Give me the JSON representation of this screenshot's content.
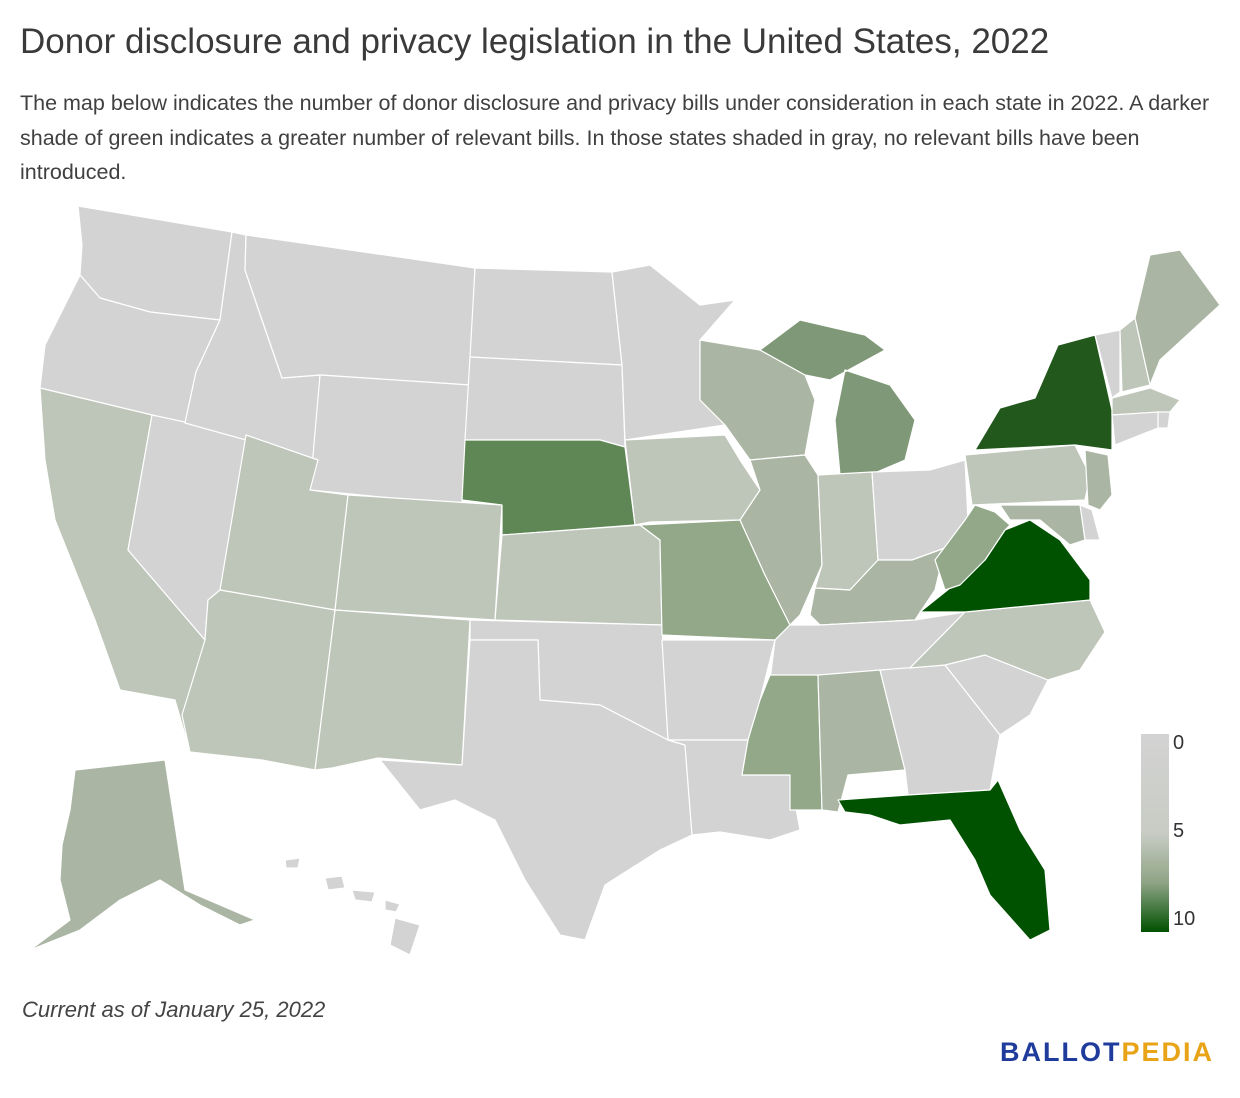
{
  "title": "Donor disclosure and privacy legislation in the United States, 2022",
  "subtitle": "The map below indicates the number of donor disclosure and privacy bills under consideration in each state in 2022. A darker shade of green indicates a greater number of relevant bills. In those states shaded in gray, no relevant bills have been introduced.",
  "footnote": "Current as of January 25, 2022",
  "logo": {
    "part1": "BALLOT",
    "part2": "PEDIA"
  },
  "legend": {
    "labels": [
      "0",
      "5",
      "10"
    ],
    "colors": [
      "#d3d3d3",
      "#c8ccc4",
      "#8fa486",
      "#005100"
    ]
  },
  "colors": {
    "none": "#d3d3d3",
    "low": "#bec5b9",
    "low2": "#aab6a3",
    "mid": "#92a889",
    "mid2": "#7f9877",
    "high": "#5f8655",
    "very_high": "#23581c",
    "max": "#005100"
  },
  "states": [
    {
      "name": "WA",
      "level": "none"
    },
    {
      "name": "OR",
      "level": "none"
    },
    {
      "name": "CA",
      "level": "low"
    },
    {
      "name": "NV",
      "level": "none"
    },
    {
      "name": "ID",
      "level": "none"
    },
    {
      "name": "MT",
      "level": "none"
    },
    {
      "name": "WY",
      "level": "none"
    },
    {
      "name": "UT",
      "level": "low"
    },
    {
      "name": "AZ",
      "level": "low"
    },
    {
      "name": "CO",
      "level": "low"
    },
    {
      "name": "NM",
      "level": "low"
    },
    {
      "name": "ND",
      "level": "none"
    },
    {
      "name": "SD",
      "level": "none"
    },
    {
      "name": "NE",
      "level": "high"
    },
    {
      "name": "KS",
      "level": "low"
    },
    {
      "name": "OK",
      "level": "none"
    },
    {
      "name": "TX",
      "level": "none"
    },
    {
      "name": "MN",
      "level": "none"
    },
    {
      "name": "IA",
      "level": "low"
    },
    {
      "name": "MO",
      "level": "mid"
    },
    {
      "name": "AR",
      "level": "none"
    },
    {
      "name": "LA",
      "level": "none"
    },
    {
      "name": "WI",
      "level": "low2"
    },
    {
      "name": "IL",
      "level": "low2"
    },
    {
      "name": "MI",
      "level": "mid2"
    },
    {
      "name": "IN",
      "level": "low"
    },
    {
      "name": "OH",
      "level": "none"
    },
    {
      "name": "KY",
      "level": "low2"
    },
    {
      "name": "TN",
      "level": "none"
    },
    {
      "name": "MS",
      "level": "mid"
    },
    {
      "name": "AL",
      "level": "low2"
    },
    {
      "name": "GA",
      "level": "none"
    },
    {
      "name": "FL",
      "level": "max"
    },
    {
      "name": "SC",
      "level": "none"
    },
    {
      "name": "NC",
      "level": "low"
    },
    {
      "name": "VA",
      "level": "max"
    },
    {
      "name": "WV",
      "level": "mid"
    },
    {
      "name": "PA",
      "level": "low"
    },
    {
      "name": "NY",
      "level": "very_high"
    },
    {
      "name": "VT",
      "level": "none"
    },
    {
      "name": "NH",
      "level": "low"
    },
    {
      "name": "ME",
      "level": "low2"
    },
    {
      "name": "MA",
      "level": "low"
    },
    {
      "name": "RI",
      "level": "none"
    },
    {
      "name": "CT",
      "level": "none"
    },
    {
      "name": "NJ",
      "level": "low2"
    },
    {
      "name": "DE",
      "level": "none"
    },
    {
      "name": "MD",
      "level": "low2"
    },
    {
      "name": "AK",
      "level": "low2"
    },
    {
      "name": "HI",
      "level": "none"
    }
  ]
}
